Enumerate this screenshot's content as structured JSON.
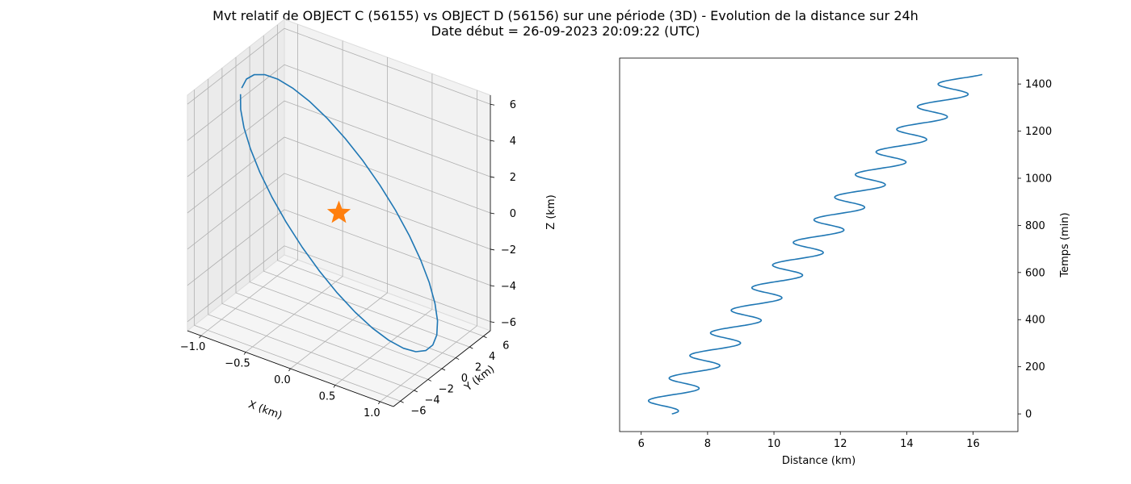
{
  "figure": {
    "title_line1": "Mvt relatif de OBJECT C (56155) vs OBJECT D (56156) sur une période (3D) - Evolution de la distance sur 24h",
    "title_line2": "Date début = 26-09-2023 20:09:22 (UTC)"
  },
  "chart_data": [
    {
      "type": "line",
      "subtype": "3d",
      "xlabel": "X (km)",
      "ylabel": "Y (km)",
      "zlabel": "Z (km)",
      "xticks": [
        "−1.0",
        "−0.5",
        "0.0",
        "0.5",
        "1.0"
      ],
      "yticks": [
        "−6",
        "−4",
        "−2",
        "0",
        "2",
        "4",
        "6"
      ],
      "zticks": [
        "−6",
        "−4",
        "−2",
        "0",
        "2",
        "4",
        "6"
      ],
      "xlim": [
        -1.15,
        1.15
      ],
      "ylim": [
        -7,
        7
      ],
      "zlim": [
        -6.5,
        6.5
      ],
      "grid": true,
      "series": [
        {
          "color": "#1f77b4",
          "trajectory": "closed elliptical relative orbit, about ±1 km in X, ±6 km in Y, ±6 km in Z"
        }
      ],
      "marker": {
        "x": 0,
        "y": 0,
        "z": 0,
        "shape": "star",
        "color": "#ff7f0e"
      }
    },
    {
      "type": "line",
      "xlabel": "Distance (km)",
      "ylabel": "Temps (min)",
      "xticks": [
        6,
        8,
        10,
        12,
        14,
        16
      ],
      "yticks": [
        0,
        200,
        400,
        600,
        800,
        1000,
        1200,
        1400
      ],
      "xlim": [
        5.35,
        17.35
      ],
      "ylim": [
        -75,
        1510
      ],
      "ylabel_position": "right",
      "grid": false,
      "series": [
        {
          "color": "#1f77b4",
          "time_min": [
            0,
            1440
          ],
          "distance_trend_km": [
            6.45,
            15.8
          ],
          "oscillation_amplitude_km": 0.6,
          "oscillation_period_min": 96
        }
      ]
    }
  ]
}
